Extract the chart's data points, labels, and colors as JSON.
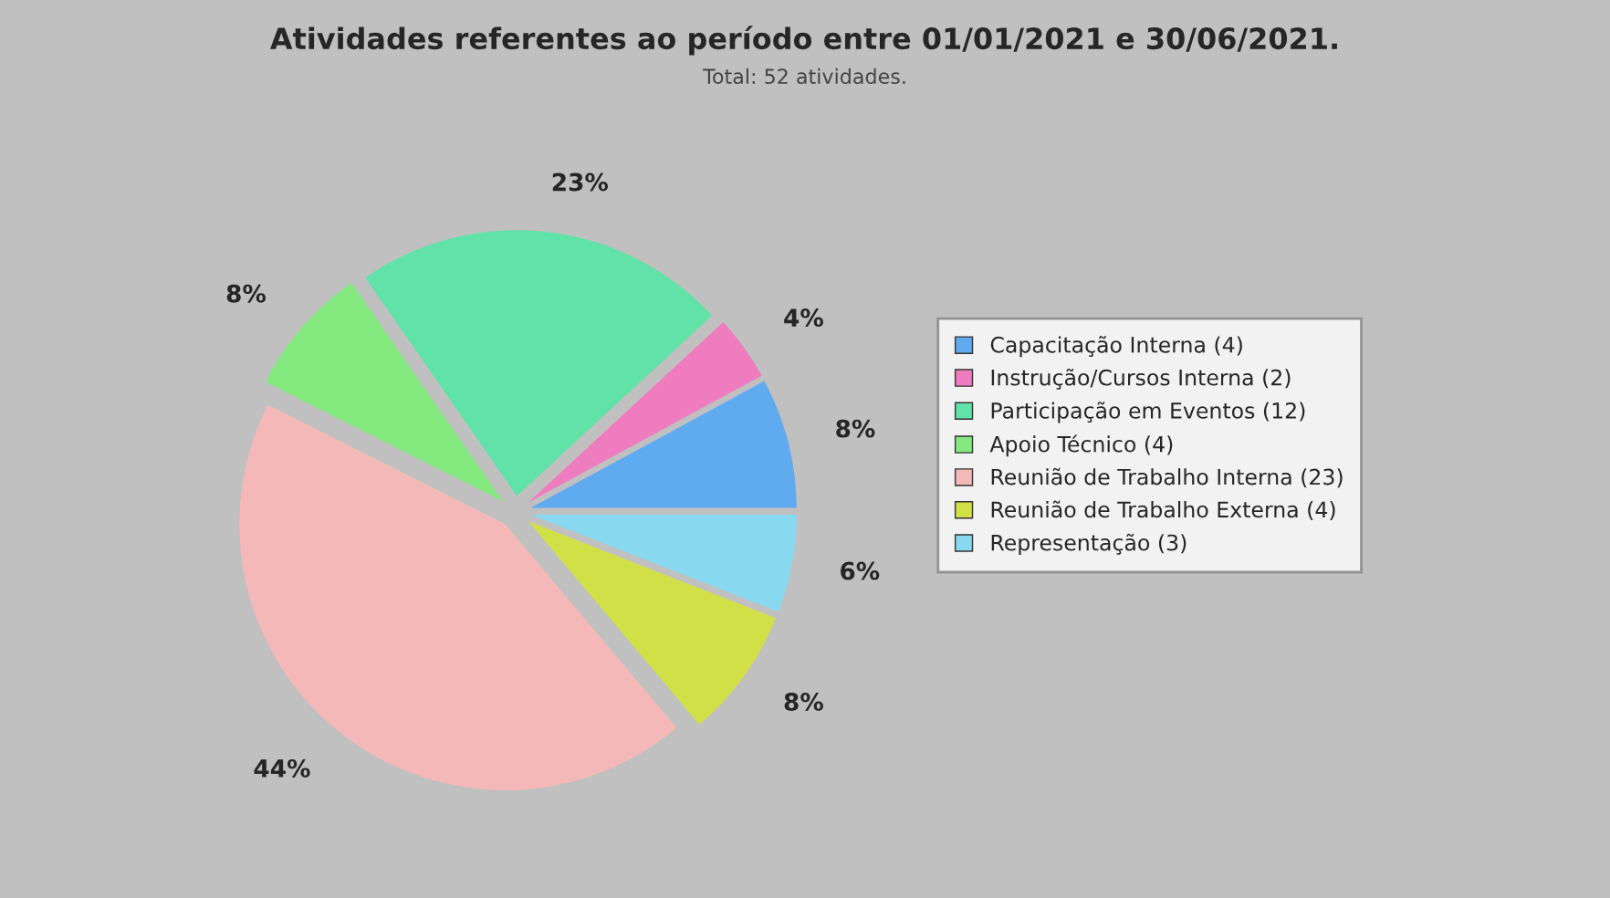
{
  "chart_data": {
    "type": "pie",
    "title": "Atividades referentes ao período entre 01/01/2021 e 30/06/2021.",
    "subtitle": "Total: 52 atividades.",
    "categories": [
      "Capacitação Interna (4)",
      "Instrução/Cursos Interna (2)",
      "Participação em Eventos (12)",
      "Apoio Técnico (4)",
      "Reunião de Trabalho Interna (23)",
      "Reunião de Trabalho Externa (4)",
      "Representação (3)"
    ],
    "values": [
      8,
      4,
      23,
      8,
      44,
      8,
      6
    ],
    "value_labels": [
      "8%",
      "4%",
      "23%",
      "8%",
      "44%",
      "8%",
      "6%"
    ],
    "colors": [
      "#60aaf0",
      "#f07cc0",
      "#60e2a8",
      "#84ea80",
      "#f5b8b8",
      "#d2e048",
      "#88d8f0"
    ],
    "legend": "right"
  }
}
